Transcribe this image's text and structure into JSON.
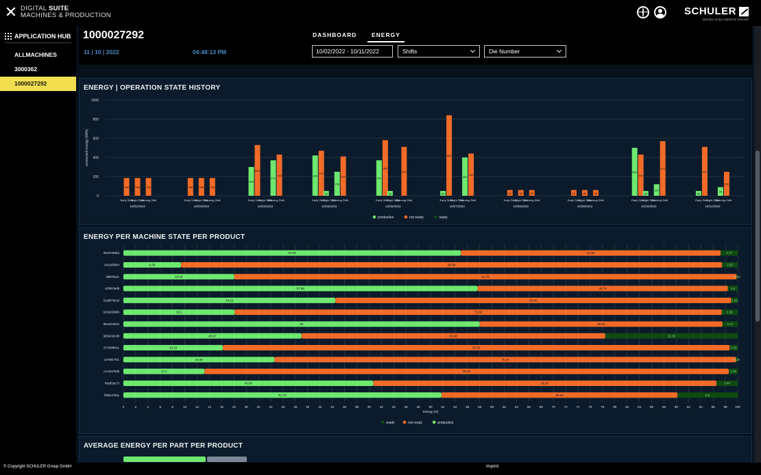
{
  "brand": {
    "line1": "DIGITAL",
    "line1_bold": "SUITE",
    "line2": "MACHINES & PRODUCTION"
  },
  "logo": {
    "word": "SCHULER",
    "sub": "Member of the ANDRITZ GROUP"
  },
  "sidebar": {
    "hub_label": "APPLICATION HUB",
    "items": [
      {
        "label": "ALLMACHINES",
        "active": false
      },
      {
        "label": "3000362",
        "active": false
      },
      {
        "label": "1000027292",
        "active": true
      }
    ]
  },
  "header": {
    "machine_id": "1000027292",
    "date": "11 | 10 | 2022",
    "time": "04:48:13 PM",
    "tabs": [
      {
        "label": "DASHBOARD"
      },
      {
        "label": "ENERGY"
      }
    ],
    "date_range": "10/02/2022 - 10/11/2022",
    "shifts_select": "Shifts",
    "die_select": "Die Number"
  },
  "footer": {
    "copyright": "© Copyright SCHULER Group GmbH",
    "imprint": "Imprint"
  },
  "colors": {
    "production": "#6ee86e",
    "not_ready": "#f26b28",
    "ready": "#0f4a12"
  },
  "panels": {
    "history_title": "ENERGY | OPERATION STATE HISTORY",
    "per_product_title": "ENERGY PER MACHINE STATE PER PRODUCT",
    "avg_title": "AVERAGE ENERGY PER PART PER PRODUCT"
  },
  "chart_data": [
    {
      "type": "bar",
      "title": "ENERGY | OPERATION STATE HISTORY",
      "ylabel": "consumed energy [kWh]",
      "ylim": [
        0,
        1000
      ],
      "yticks": [
        0,
        200,
        400,
        600,
        800,
        1000
      ],
      "shift_labels": [
        "Early Shift",
        "Night Shift",
        "Evening Shift"
      ],
      "dates": [
        "10/02/2022",
        "10/03/2022",
        "10/04/2022",
        "10/05/2022",
        "10/06/2022",
        "10/07/2022",
        "10/08/2022",
        "10/09/2022",
        "10/10/2022",
        "10/11/2022"
      ],
      "legend": [
        "production",
        "not ready",
        "ready"
      ],
      "series": [
        {
          "name": "production",
          "values": [
            [
              0,
              0,
              0
            ],
            [
              0,
              0,
              0
            ],
            [
              300,
              0,
              370
            ],
            [
              420,
              50,
              250
            ],
            [
              370,
              50,
              0
            ],
            [
              50,
              0,
              400
            ],
            [
              0,
              0,
              0
            ],
            [
              0,
              0,
              0
            ],
            [
              500,
              50,
              120
            ],
            [
              50,
              0,
              90
            ]
          ]
        },
        {
          "name": "not ready",
          "values": [
            [
              185,
              185,
              185
            ],
            [
              185,
              185,
              185
            ],
            [
              530,
              0,
              430
            ],
            [
              470,
              0,
              410
            ],
            [
              580,
              0,
              510
            ],
            [
              840,
              0,
              440
            ],
            [
              60,
              60,
              60
            ],
            [
              60,
              60,
              60
            ],
            [
              430,
              0,
              570
            ],
            [
              510,
              0,
              250
            ]
          ]
        },
        {
          "name": "ready",
          "values": [
            [
              0,
              0,
              0
            ],
            [
              0,
              0,
              0
            ],
            [
              0,
              0,
              0
            ],
            [
              0,
              0,
              0
            ],
            [
              0,
              0,
              0
            ],
            [
              0,
              0,
              0
            ],
            [
              0,
              0,
              0
            ],
            [
              0,
              0,
              0
            ],
            [
              0,
              0,
              0
            ],
            [
              0,
              0,
              0
            ]
          ]
        }
      ]
    },
    {
      "type": "bar",
      "orientation": "horizontal-stacked",
      "title": "ENERGY PER MACHINE STATE PER PRODUCT",
      "xlabel": "Energy [%]",
      "xlim": [
        0,
        100
      ],
      "xtick_step": 2,
      "legend": [
        "ready",
        "not ready",
        "production"
      ],
      "categories": [
        "09cd7494ba",
        "24e3ef2954",
        "30f67ba2c",
        "41f0675ef8",
        "61dd679e3d",
        "8162e50986",
        "92eed7de02",
        "9654242cd9",
        "97c489b6c1",
        "a2789c7f41",
        "c1c44378d8",
        "f0edf19e73",
        "fbb6c27ba1"
      ],
      "production": [
        54.94,
        9.38,
        18.03,
        57.65,
        34.52,
        18.1,
        58,
        28.97,
        16.18,
        24.59,
        13.2,
        40.69,
        51.78
      ],
      "not_ready": [
        42.29,
        88.09,
        81.79,
        40.75,
        64.45,
        79.32,
        39.53,
        49.48,
        82.53,
        75.15,
        85.35,
        55.87,
        38.42
      ],
      "ready": [
        2.77,
        2.53,
        0.18,
        1.6,
        1.03,
        2.58,
        2.47,
        21.55,
        1.29,
        0.26,
        1.45,
        3.44,
        9.8
      ]
    }
  ]
}
